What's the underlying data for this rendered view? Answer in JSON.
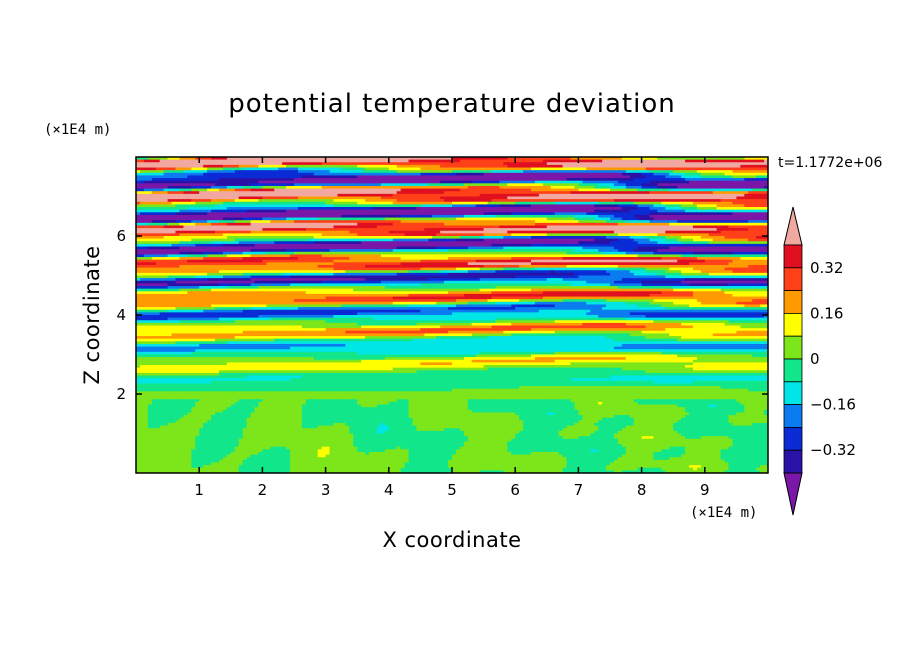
{
  "chart_data": {
    "type": "heatmap",
    "title": "potential temperature deviation",
    "xlabel": "X coordinate",
    "ylabel": "Z coordinate",
    "x_unit": "(×1E4 m)",
    "y_unit": "(×1E4 m)",
    "time_label": "t=1.1772e+06",
    "xlim": [
      0,
      10
    ],
    "ylim": [
      0,
      8
    ],
    "x_ticks": [
      "1",
      "2",
      "3",
      "4",
      "5",
      "6",
      "7",
      "8",
      "9"
    ],
    "y_ticks": [
      "2",
      "4",
      "6"
    ],
    "colorbar": {
      "levels": [
        -0.4,
        -0.32,
        -0.24,
        -0.16,
        -0.08,
        0,
        0.08,
        0.16,
        0.24,
        0.32,
        0.4
      ],
      "labels": [
        "0.32",
        "0.16",
        "0",
        "−0.16",
        "−0.32"
      ],
      "colors_low_to_high": [
        "#7a16a8",
        "#2a12a8",
        "#0a2bd6",
        "#0a7cf0",
        "#00e6e6",
        "#12e68a",
        "#7ce61a",
        "#ffff00",
        "#ff9a00",
        "#ff4018",
        "#e01020",
        "#f0a8a0"
      ]
    }
  }
}
